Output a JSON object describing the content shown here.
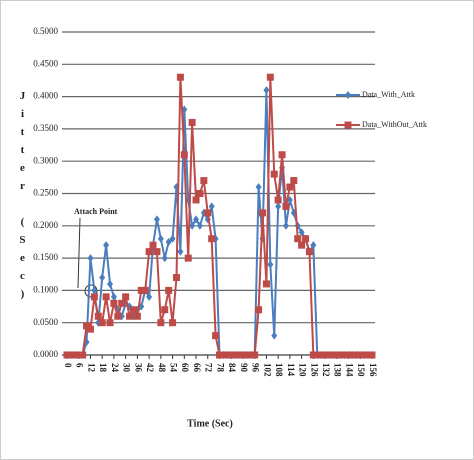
{
  "chart_data": {
    "type": "line",
    "y_label": "Jitter (Sec)",
    "x_label": "Time (Sec)",
    "annotation": "Attach Point",
    "x": [
      0,
      2,
      4,
      6,
      8,
      10,
      12,
      14,
      16,
      18,
      20,
      22,
      24,
      26,
      28,
      30,
      32,
      34,
      36,
      38,
      40,
      42,
      44,
      46,
      48,
      50,
      52,
      54,
      56,
      58,
      60,
      62,
      64,
      66,
      68,
      70,
      72,
      74,
      76,
      78,
      80,
      82,
      84,
      86,
      88,
      90,
      92,
      94,
      96,
      98,
      100,
      102,
      104,
      106,
      108,
      110,
      112,
      114,
      116,
      118,
      120,
      122,
      124,
      126,
      128,
      130,
      132,
      134,
      136,
      138,
      140,
      142,
      144,
      146,
      148,
      150,
      152,
      154,
      156
    ],
    "series": [
      {
        "name": "Data_With_Attk",
        "color": "#4a7ebf",
        "values": [
          0,
          0,
          0,
          0,
          0,
          0.02,
          0.15,
          0.1,
          0.05,
          0.12,
          0.17,
          0.11,
          0.09,
          0.07,
          0.06,
          0.08,
          0.075,
          0.06,
          0.07,
          0.075,
          0.1,
          0.09,
          0.17,
          0.21,
          0.18,
          0.15,
          0.175,
          0.18,
          0.26,
          0.16,
          0.38,
          0.24,
          0.2,
          0.21,
          0.2,
          0.22,
          0.21,
          0.23,
          0.18,
          0,
          0,
          0,
          0,
          0,
          0,
          0,
          0,
          0,
          0,
          0.26,
          0.18,
          0.41,
          0.14,
          0.03,
          0.23,
          0.29,
          0.2,
          0.24,
          0.22,
          0.2,
          0.19,
          0.18,
          0.16,
          0.17,
          0,
          0,
          0,
          0,
          0,
          0,
          0,
          0,
          0,
          0,
          0,
          0,
          0,
          0,
          0
        ]
      },
      {
        "name": "Data_WithOut_Attk",
        "color": "#be4b48",
        "values": [
          0,
          0,
          0,
          0,
          0,
          0.045,
          0.04,
          0.09,
          0.06,
          0.05,
          0.09,
          0.05,
          0.08,
          0.06,
          0.08,
          0.09,
          0.06,
          0.07,
          0.06,
          0.1,
          0.1,
          0.16,
          0.17,
          0.16,
          0.05,
          0.07,
          0.1,
          0.05,
          0.12,
          0.43,
          0.31,
          0.15,
          0.36,
          0.24,
          0.25,
          0.27,
          0.22,
          0.18,
          0.03,
          0,
          0,
          0,
          0,
          0,
          0,
          0,
          0,
          0,
          0,
          0.07,
          0.22,
          0.11,
          0.43,
          0.28,
          0.24,
          0.31,
          0.23,
          0.26,
          0.27,
          0.18,
          0.17,
          0.18,
          0.16,
          0,
          0,
          0,
          0,
          0,
          0,
          0,
          0,
          0,
          0,
          0,
          0,
          0,
          0,
          0,
          0
        ]
      }
    ],
    "xlim": [
      0,
      156
    ],
    "xticks": [
      0,
      6,
      12,
      18,
      24,
      30,
      36,
      42,
      48,
      54,
      60,
      66,
      72,
      78,
      84,
      90,
      96,
      102,
      108,
      114,
      120,
      126,
      132,
      138,
      144,
      150,
      156
    ],
    "ylim": [
      0,
      0.5
    ],
    "yticks": [
      {
        "value": 0,
        "label": "0.0000"
      },
      {
        "value": 0.05,
        "label": "0.0500"
      },
      {
        "value": 0.1,
        "label": "0.1000"
      },
      {
        "value": 0.15,
        "label": "0.1500"
      },
      {
        "value": 0.2,
        "label": "0.2000"
      },
      {
        "value": 0.25,
        "label": "0.2500"
      },
      {
        "value": 0.3,
        "label": "0.3000"
      },
      {
        "value": 0.35,
        "label": "0.3500"
      },
      {
        "value": 0.4,
        "label": "0.4000"
      },
      {
        "value": 0.45,
        "label": "0.4500"
      },
      {
        "value": 0.5,
        "label": "0.5000"
      }
    ],
    "grid": true,
    "legend": "right"
  }
}
